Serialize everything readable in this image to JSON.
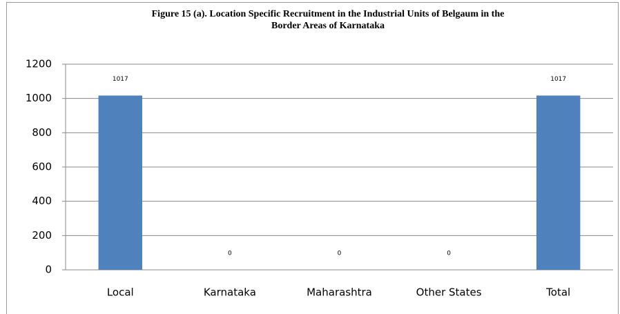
{
  "chart_data": {
    "type": "bar",
    "title": [
      "Figure 15 (a). Location Specific Recruitment in the Industrial Units of Belgaum in the",
      "Border Areas of Karnataka"
    ],
    "categories": [
      "Local",
      "Karnataka",
      "Maharashtra",
      "Other States",
      "Total"
    ],
    "values": [
      1017,
      0,
      0,
      0,
      1017
    ],
    "color": "#4f81bd",
    "ylim": [
      0,
      1200
    ],
    "yticks": [
      0,
      200,
      400,
      600,
      800,
      1000,
      1200
    ],
    "grid": true
  }
}
